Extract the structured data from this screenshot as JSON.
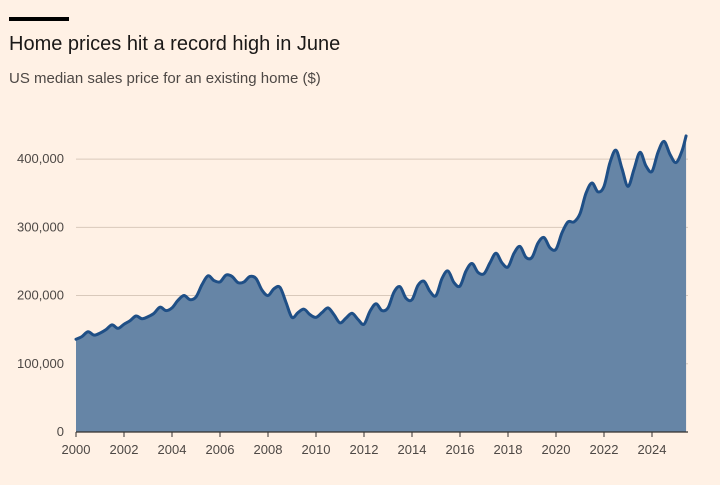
{
  "header": {
    "title": "Home prices hit a record high in June",
    "subtitle": "US median sales price for an existing home ($)"
  },
  "colors": {
    "background": "#fff1e5",
    "area_fill": "#6685a6",
    "line": "#1f4f86",
    "gridline": "#d9c9bb",
    "axis": "#33302e"
  },
  "chart_data": {
    "type": "area",
    "title": "Home prices hit a record high in June",
    "subtitle": "US median sales price for an existing home ($)",
    "xlabel": "",
    "ylabel": "",
    "xlim": [
      2000,
      2025.5
    ],
    "ylim": [
      0,
      450000
    ],
    "yticks": [
      0,
      100000,
      200000,
      300000,
      400000
    ],
    "ytick_labels": [
      "0",
      "100,000",
      "200,000",
      "300,000",
      "400,000"
    ],
    "xticks": [
      2000,
      2002,
      2004,
      2006,
      2008,
      2010,
      2012,
      2014,
      2016,
      2018,
      2020,
      2022,
      2024
    ],
    "xtick_labels": [
      "2000",
      "2002",
      "2004",
      "2006",
      "2008",
      "2010",
      "2012",
      "2014",
      "2016",
      "2018",
      "2020",
      "2022",
      "2024"
    ],
    "grid": true,
    "legend": "none",
    "series": [
      {
        "name": "Median sales price",
        "x": [
          2000.0,
          2000.25,
          2000.5,
          2000.75,
          2001.0,
          2001.25,
          2001.5,
          2001.75,
          2002.0,
          2002.25,
          2002.5,
          2002.75,
          2003.0,
          2003.25,
          2003.5,
          2003.75,
          2004.0,
          2004.25,
          2004.5,
          2004.75,
          2005.0,
          2005.25,
          2005.5,
          2005.75,
          2006.0,
          2006.25,
          2006.5,
          2006.75,
          2007.0,
          2007.25,
          2007.5,
          2007.75,
          2008.0,
          2008.25,
          2008.5,
          2008.75,
          2009.0,
          2009.25,
          2009.5,
          2009.75,
          2010.0,
          2010.25,
          2010.5,
          2010.75,
          2011.0,
          2011.25,
          2011.5,
          2011.75,
          2012.0,
          2012.25,
          2012.5,
          2012.75,
          2013.0,
          2013.25,
          2013.5,
          2013.75,
          2014.0,
          2014.25,
          2014.5,
          2014.75,
          2015.0,
          2015.25,
          2015.5,
          2015.75,
          2016.0,
          2016.25,
          2016.5,
          2016.75,
          2017.0,
          2017.25,
          2017.5,
          2017.75,
          2018.0,
          2018.25,
          2018.5,
          2018.75,
          2019.0,
          2019.25,
          2019.5,
          2019.75,
          2020.0,
          2020.25,
          2020.5,
          2020.75,
          2021.0,
          2021.25,
          2021.5,
          2021.75,
          2022.0,
          2022.25,
          2022.5,
          2022.75,
          2023.0,
          2023.25,
          2023.5,
          2023.75,
          2024.0,
          2024.25,
          2024.5,
          2024.75,
          2025.0,
          2025.25,
          2025.42
        ],
        "values": [
          136000,
          140000,
          147000,
          142000,
          145000,
          150000,
          157000,
          152000,
          158000,
          163000,
          170000,
          166000,
          169000,
          174000,
          183000,
          178000,
          182000,
          193000,
          200000,
          194000,
          198000,
          216000,
          229000,
          222000,
          220000,
          230000,
          228000,
          219000,
          220000,
          228000,
          225000,
          208000,
          200000,
          210000,
          212000,
          190000,
          168000,
          175000,
          180000,
          172000,
          168000,
          175000,
          182000,
          172000,
          160000,
          167000,
          174000,
          165000,
          158000,
          177000,
          188000,
          178000,
          182000,
          205000,
          213000,
          196000,
          194000,
          215000,
          221000,
          206000,
          200000,
          225000,
          236000,
          219000,
          214000,
          236000,
          247000,
          234000,
          232000,
          248000,
          262000,
          248000,
          242000,
          262000,
          272000,
          256000,
          256000,
          277000,
          285000,
          270000,
          268000,
          292000,
          308000,
          308000,
          320000,
          350000,
          365000,
          352000,
          360000,
          395000,
          413000,
          386000,
          360000,
          385000,
          410000,
          390000,
          382000,
          410000,
          426000,
          407000,
          395000,
          412000,
          434000
        ]
      }
    ]
  }
}
